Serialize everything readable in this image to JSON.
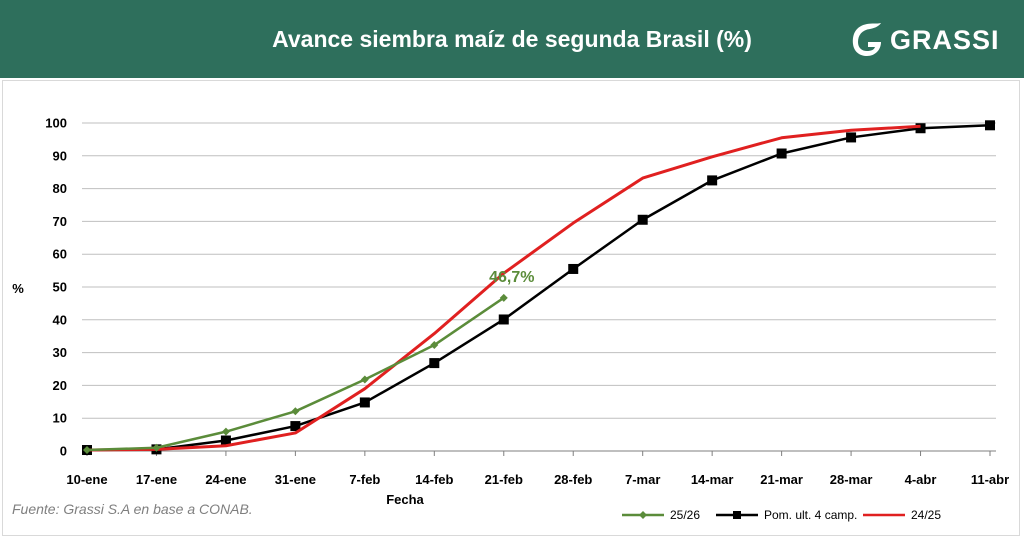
{
  "header": {
    "title": "Avance siembra maíz de segunda Brasil (%)",
    "brand": "GRASSI",
    "brand_icon": "leaf-g-logo-icon"
  },
  "source_note": "Fuente: Grassi S.A en base a CONAB.",
  "colors": {
    "header_bg": "#2e6f5c",
    "series_2526": "#5b8c3a",
    "series_prom": "#000000",
    "series_2425": "#e02020",
    "grid": "#bfbfbf"
  },
  "chart_data": {
    "type": "line",
    "title": "Avance siembra maíz de segunda Brasil (%)",
    "xlabel": "Fecha",
    "ylabel": "%",
    "ylim": [
      0,
      100
    ],
    "yticks": [
      "0",
      "10",
      "20",
      "30",
      "40",
      "50",
      "60",
      "70",
      "80",
      "90",
      "100"
    ],
    "categories": [
      "10-ene",
      "17-ene",
      "24-ene",
      "31-ene",
      "7-feb",
      "14-feb",
      "21-feb",
      "28-feb",
      "7-mar",
      "14-mar",
      "21-mar",
      "28-mar",
      "4-abr",
      "11-abr"
    ],
    "grid": true,
    "legend_position": "bottom-right",
    "series": [
      {
        "name": "25/26",
        "color": "#5b8c3a",
        "marker": "diamond",
        "values": [
          0.3,
          1.0,
          5.9,
          12.1,
          21.8,
          32.3,
          46.7,
          null,
          null,
          null,
          null,
          null,
          null,
          null
        ]
      },
      {
        "name": "Pom. ult. 4 camp.",
        "color": "#000000",
        "marker": "square",
        "values": [
          0.3,
          0.5,
          3.2,
          7.6,
          14.8,
          26.8,
          40.1,
          55.5,
          70.5,
          82.5,
          90.7,
          95.6,
          98.4,
          99.3
        ]
      },
      {
        "name": "24/25",
        "color": "#e02020",
        "marker": "none",
        "values": [
          0.3,
          0.5,
          1.6,
          5.5,
          19.0,
          35.8,
          54.2,
          69.5,
          83.2,
          89.7,
          95.5,
          97.8,
          99.0,
          null
        ]
      }
    ],
    "annotations": [
      {
        "text": "46,7%",
        "series": "25/26",
        "category": "21-feb",
        "value": 46.7
      }
    ]
  }
}
